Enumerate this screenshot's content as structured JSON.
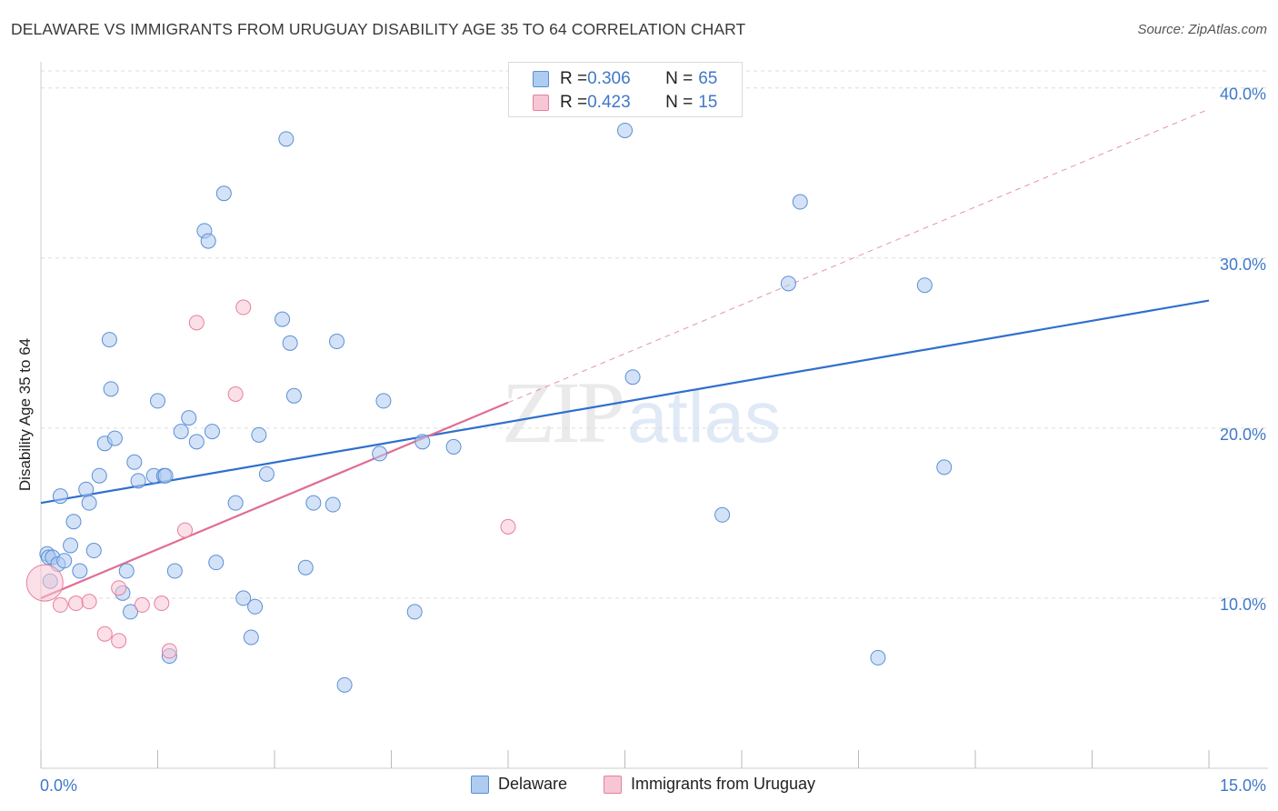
{
  "title": "DELAWARE VS IMMIGRANTS FROM URUGUAY DISABILITY AGE 35 TO 64 CORRELATION CHART",
  "source": "Source: ZipAtlas.com",
  "watermark": {
    "zip": "ZIP",
    "atlas": "atlas"
  },
  "legend": {
    "rows": [
      {
        "r_label": "R = ",
        "r_value": "0.306",
        "n_label": "N = ",
        "n_value": "65"
      },
      {
        "r_label": "R = ",
        "r_value": "0.423",
        "n_label": "N = ",
        "n_value": "15"
      }
    ]
  },
  "bottom_legend": [
    "Delaware",
    "Immigrants from Uruguay"
  ],
  "colors": {
    "delaware_fill": "#aecbf0",
    "delaware_stroke": "#5b8fd6",
    "delaware_line": "#2f6fcd",
    "uruguay_fill": "#f7c6d4",
    "uruguay_stroke": "#e77fa0",
    "uruguay_line": "#e06d94",
    "tick_text": "#3f78c8",
    "grid": "#dcdcdc"
  },
  "chart_data": {
    "type": "scatter",
    "title": "DELAWARE VS IMMIGRANTS FROM URUGUAY DISABILITY AGE 35 TO 64 CORRELATION CHART",
    "xlabel": "",
    "ylabel": "Disability Age 35 to 64",
    "xlim": [
      0,
      15
    ],
    "ylim": [
      0,
      41
    ],
    "x_tick_labels": [
      "0.0%",
      "15.0%"
    ],
    "y_ticks": [
      10,
      20,
      30,
      40
    ],
    "y_tick_labels": [
      "10.0%",
      "20.0%",
      "30.0%",
      "40.0%"
    ],
    "grid": true,
    "legend_position": "top-center",
    "series": [
      {
        "name": "Delaware",
        "points": [
          [
            0.08,
            12.6
          ],
          [
            0.1,
            12.4
          ],
          [
            0.15,
            12.4
          ],
          [
            0.22,
            12.0
          ],
          [
            0.25,
            16.0
          ],
          [
            0.38,
            13.1
          ],
          [
            0.42,
            14.5
          ],
          [
            0.5,
            11.6
          ],
          [
            0.58,
            16.4
          ],
          [
            0.62,
            15.6
          ],
          [
            0.68,
            12.8
          ],
          [
            0.75,
            17.2
          ],
          [
            0.82,
            19.1
          ],
          [
            0.88,
            25.2
          ],
          [
            0.9,
            22.3
          ],
          [
            0.95,
            19.4
          ],
          [
            1.05,
            10.3
          ],
          [
            1.1,
            11.6
          ],
          [
            1.15,
            9.2
          ],
          [
            1.2,
            18.0
          ],
          [
            1.25,
            16.9
          ],
          [
            1.45,
            17.2
          ],
          [
            1.5,
            21.6
          ],
          [
            1.58,
            17.2
          ],
          [
            1.6,
            17.2
          ],
          [
            1.65,
            6.6
          ],
          [
            1.72,
            11.6
          ],
          [
            1.8,
            19.8
          ],
          [
            1.9,
            20.6
          ],
          [
            2.0,
            19.2
          ],
          [
            2.1,
            31.6
          ],
          [
            2.15,
            31.0
          ],
          [
            2.2,
            19.8
          ],
          [
            2.25,
            12.1
          ],
          [
            2.35,
            33.8
          ],
          [
            2.5,
            15.6
          ],
          [
            2.6,
            10.0
          ],
          [
            2.7,
            7.7
          ],
          [
            2.75,
            9.5
          ],
          [
            2.8,
            19.6
          ],
          [
            2.9,
            17.3
          ],
          [
            3.1,
            26.4
          ],
          [
            3.15,
            37.0
          ],
          [
            3.2,
            25.0
          ],
          [
            3.25,
            21.9
          ],
          [
            3.4,
            11.8
          ],
          [
            3.5,
            15.6
          ],
          [
            3.75,
            15.5
          ],
          [
            3.8,
            25.1
          ],
          [
            3.9,
            4.9
          ],
          [
            4.35,
            18.5
          ],
          [
            4.4,
            21.6
          ],
          [
            4.8,
            9.2
          ],
          [
            4.9,
            19.2
          ],
          [
            5.3,
            18.9
          ],
          [
            7.5,
            37.5
          ],
          [
            7.6,
            23.0
          ],
          [
            8.75,
            14.9
          ],
          [
            9.6,
            28.5
          ],
          [
            9.75,
            33.3
          ],
          [
            10.75,
            6.5
          ],
          [
            11.35,
            28.4
          ],
          [
            11.6,
            17.7
          ],
          [
            0.12,
            11.0
          ],
          [
            0.3,
            12.2
          ]
        ],
        "trend": {
          "x": [
            0,
            15
          ],
          "y": [
            15.6,
            27.5
          ]
        }
      },
      {
        "name": "Immigrants from Uruguay",
        "points": [
          [
            0.05,
            10.9
          ],
          [
            0.25,
            9.6
          ],
          [
            0.45,
            9.7
          ],
          [
            0.62,
            9.8
          ],
          [
            0.82,
            7.9
          ],
          [
            1.0,
            7.5
          ],
          [
            1.0,
            10.6
          ],
          [
            1.3,
            9.6
          ],
          [
            1.55,
            9.7
          ],
          [
            1.65,
            6.9
          ],
          [
            1.85,
            14.0
          ],
          [
            2.0,
            26.2
          ],
          [
            2.5,
            22.0
          ],
          [
            2.6,
            27.1
          ],
          [
            6.0,
            14.2
          ]
        ],
        "trend": {
          "x": [
            0,
            6.0
          ],
          "y": [
            10.0,
            21.5
          ]
        },
        "trend_extension": {
          "x": [
            6.0,
            15
          ],
          "y": [
            21.5,
            38.75
          ]
        }
      }
    ]
  }
}
